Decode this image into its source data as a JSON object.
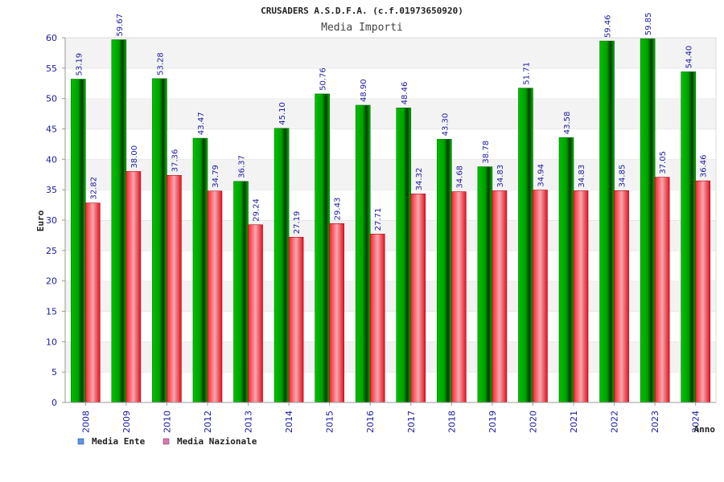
{
  "chart_data": {
    "type": "bar",
    "title": "CRUSADERS A.S.D.F.A. (c.f.01973650920)",
    "subtitle": "Media Importi",
    "xlabel": "Anno",
    "ylabel": "Euro",
    "ylim": [
      0,
      60
    ],
    "yticks": [
      0,
      5,
      10,
      15,
      20,
      25,
      30,
      35,
      40,
      45,
      50,
      55,
      60
    ],
    "grid": "horizontal bands",
    "legend_position": "bottom-left",
    "categories": [
      "2008",
      "2009",
      "2010",
      "2012",
      "2013",
      "2014",
      "2015",
      "2016",
      "2017",
      "2018",
      "2019",
      "2020",
      "2021",
      "2022",
      "2023",
      "2024"
    ],
    "series": [
      {
        "name": "Media Ente",
        "color": "#00b000",
        "legend_color": "#5599ee",
        "values": [
          53.19,
          59.67,
          53.28,
          43.47,
          36.37,
          45.1,
          50.76,
          48.9,
          48.46,
          43.3,
          38.78,
          51.71,
          43.58,
          59.46,
          59.85,
          54.4
        ],
        "labels": [
          "53.19",
          "59.67",
          "53.28",
          "43.47",
          "36.37",
          "45.10",
          "50.76",
          "48.90",
          "48.46",
          "43.30",
          "38.78",
          "51.71",
          "43.58",
          "59.46",
          "59.85",
          "54.40"
        ]
      },
      {
        "name": "Media Nazionale",
        "color": "#e8202a",
        "legend_color": "#dd77aa",
        "values": [
          32.82,
          38.0,
          37.36,
          34.79,
          29.24,
          27.19,
          29.43,
          27.71,
          34.32,
          34.68,
          34.83,
          34.94,
          34.83,
          34.85,
          37.05,
          36.46
        ],
        "labels": [
          "32.82",
          "38.00",
          "37.36",
          "34.79",
          "29.24",
          "27.19",
          "29.43",
          "27.71",
          "34.32",
          "34.68",
          "34.83",
          "34.94",
          "34.83",
          "34.85",
          "37.05",
          "36.46"
        ]
      }
    ]
  }
}
